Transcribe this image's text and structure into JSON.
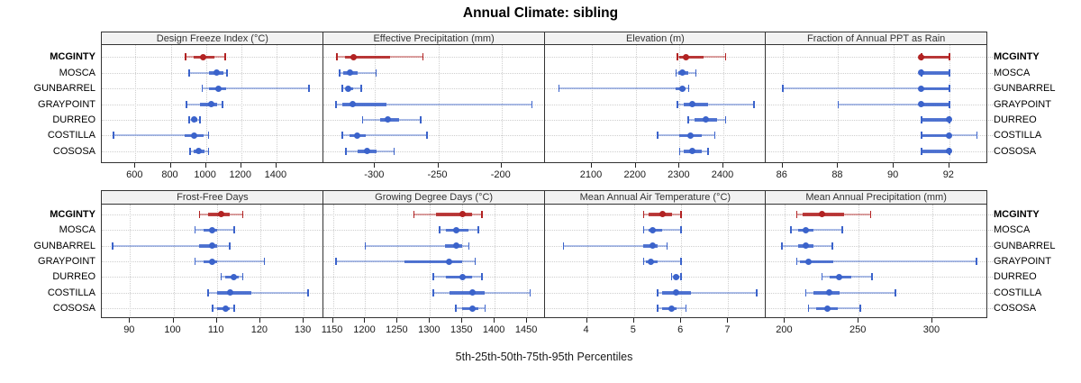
{
  "title": "Annual Climate: sibling",
  "axis_note": "5th-25th-50th-75th-95th Percentiles",
  "categories": [
    "MCGINTY",
    "MOSCA",
    "GUNBARREL",
    "GRAYPOINT",
    "DURREO",
    "COSTILLA",
    "COSOSA"
  ],
  "highlight_category": "MCGINTY",
  "colors": {
    "highlight": "#b22222",
    "series": "#3b63cb",
    "grid": "#cfcfcf",
    "panel_border": "#333333",
    "header_bg": "#f2f2f2",
    "text": "#000000"
  },
  "chart_data": {
    "type": "dot-whisker-percentiles",
    "percentiles": [
      "5th",
      "25th",
      "50th",
      "75th",
      "95th"
    ],
    "layout": {
      "rows": 2,
      "cols": 4,
      "legend": "none",
      "grid": "dotted"
    },
    "panels": [
      {
        "title": "Design Freeze Index (°C)",
        "xlim": [
          409,
          1665
        ],
        "ticks": [
          600,
          800,
          1000,
          1200,
          1400
        ],
        "series": [
          {
            "name": "MCGINTY",
            "values": [
              885,
              930,
              985,
              1050,
              1110
            ]
          },
          {
            "name": "MOSCA",
            "values": [
              905,
              1015,
              1060,
              1100,
              1120
            ]
          },
          {
            "name": "GUNBARREL",
            "values": [
              980,
              1015,
              1070,
              1115,
              1585
            ]
          },
          {
            "name": "GRAYPOINT",
            "values": [
              890,
              965,
              1030,
              1065,
              1095
            ]
          },
          {
            "name": "DURREO",
            "values": [
              905,
              920,
              935,
              950,
              965
            ]
          },
          {
            "name": "COSTILLA",
            "values": [
              475,
              880,
              935,
              985,
              1015
            ]
          },
          {
            "name": "COSOSA",
            "values": [
              910,
              930,
              960,
              990,
              1015
            ]
          }
        ]
      },
      {
        "title": "Effective Precipitation (mm)",
        "xlim": [
          -341,
          -166
        ],
        "ticks": [
          -300,
          -250,
          -200
        ],
        "series": [
          {
            "name": "MCGINTY",
            "values": [
              -330,
              -324,
              -317,
              -288,
              -262
            ]
          },
          {
            "name": "MOSCA",
            "values": [
              -328,
              -325,
              -320,
              -314,
              -299
            ]
          },
          {
            "name": "GUNBARREL",
            "values": [
              -326,
              -323,
              -321,
              -317,
              -311
            ]
          },
          {
            "name": "GRAYPOINT",
            "values": [
              -331,
              -326,
              -318,
              -291,
              -176
            ]
          },
          {
            "name": "DURREO",
            "values": [
              -310,
              -296,
              -290,
              -281,
              -264
            ]
          },
          {
            "name": "COSTILLA",
            "values": [
              -326,
              -320,
              -314,
              -307,
              -259
            ]
          },
          {
            "name": "COSOSA",
            "values": [
              -323,
              -314,
              -306,
              -299,
              -285
            ]
          }
        ]
      },
      {
        "title": "Elevation (m)",
        "xlim": [
          1992,
          2497
        ],
        "ticks": [
          2100,
          2200,
          2300,
          2400
        ],
        "series": [
          {
            "name": "MCGINTY",
            "values": [
              2295,
              2300,
              2315,
              2355,
              2405
            ]
          },
          {
            "name": "MOSCA",
            "values": [
              2292,
              2297,
              2307,
              2320,
              2337
            ]
          },
          {
            "name": "GUNBARREL",
            "values": [
              2025,
              2290,
              2306,
              2314,
              2321
            ]
          },
          {
            "name": "GRAYPOINT",
            "values": [
              2295,
              2310,
              2330,
              2365,
              2470
            ]
          },
          {
            "name": "DURREO",
            "values": [
              2320,
              2335,
              2360,
              2385,
              2405
            ]
          },
          {
            "name": "COSTILLA",
            "values": [
              2250,
              2300,
              2325,
              2350,
              2380
            ]
          },
          {
            "name": "COSOSA",
            "values": [
              2300,
              2310,
              2330,
              2350,
              2365
            ]
          }
        ]
      },
      {
        "title": "Fraction of Annual PPT as Rain",
        "xlim": [
          85.4,
          93.4
        ],
        "ticks": [
          86,
          88,
          90,
          92
        ],
        "series": [
          {
            "name": "MCGINTY",
            "values": [
              91,
              91,
              91,
              92,
              92
            ]
          },
          {
            "name": "MOSCA",
            "values": [
              91,
              91,
              91,
              92,
              92
            ]
          },
          {
            "name": "GUNBARREL",
            "values": [
              86,
              91,
              91,
              92,
              92
            ]
          },
          {
            "name": "GRAYPOINT",
            "values": [
              88,
              91,
              91,
              92,
              92
            ]
          },
          {
            "name": "DURREO",
            "values": [
              91,
              91,
              92,
              92,
              92
            ]
          },
          {
            "name": "COSTILLA",
            "values": [
              91,
              91,
              92,
              92,
              93
            ]
          },
          {
            "name": "COSOSA",
            "values": [
              91,
              91,
              92,
              92,
              92
            ]
          }
        ]
      },
      {
        "title": "Frost-Free Days",
        "xlim": [
          83.5,
          134.5
        ],
        "ticks": [
          90,
          100,
          110,
          120,
          130
        ],
        "series": [
          {
            "name": "MCGINTY",
            "values": [
              106,
              108,
              111,
              113,
              116
            ]
          },
          {
            "name": "MOSCA",
            "values": [
              105,
              107,
              109,
              110,
              114
            ]
          },
          {
            "name": "GUNBARREL",
            "values": [
              86,
              106,
              109,
              110,
              113
            ]
          },
          {
            "name": "GRAYPOINT",
            "values": [
              105,
              107,
              109,
              110,
              121
            ]
          },
          {
            "name": "DURREO",
            "values": [
              111,
              112,
              114,
              115,
              116
            ]
          },
          {
            "name": "COSTILLA",
            "values": [
              108,
              110,
              113,
              118,
              131
            ]
          },
          {
            "name": "COSOSA",
            "values": [
              109,
              110,
              112,
              113,
              114
            ]
          }
        ]
      },
      {
        "title": "Growing Degree Days (°C)",
        "xlim": [
          1135,
          1477
        ],
        "ticks": [
          1150,
          1200,
          1250,
          1300,
          1350,
          1400,
          1450
        ],
        "series": [
          {
            "name": "MCGINTY",
            "values": [
              1275,
              1310,
              1350,
              1365,
              1380
            ]
          },
          {
            "name": "MOSCA",
            "values": [
              1315,
              1325,
              1340,
              1360,
              1375
            ]
          },
          {
            "name": "GUNBARREL",
            "values": [
              1200,
              1323,
              1340,
              1350,
              1360
            ]
          },
          {
            "name": "GRAYPOINT",
            "values": [
              1155,
              1260,
              1330,
              1350,
              1370
            ]
          },
          {
            "name": "DURREO",
            "values": [
              1305,
              1325,
              1350,
              1365,
              1380
            ]
          },
          {
            "name": "COSTILLA",
            "values": [
              1305,
              1330,
              1365,
              1385,
              1455
            ]
          },
          {
            "name": "COSOSA",
            "values": [
              1340,
              1350,
              1365,
              1375,
              1385
            ]
          }
        ]
      },
      {
        "title": "Mean Annual Air Temperature (°C)",
        "xlim": [
          3.1,
          7.8
        ],
        "ticks": [
          4,
          5,
          6,
          7
        ],
        "series": [
          {
            "name": "MCGINTY",
            "values": [
              5.2,
              5.3,
              5.6,
              5.8,
              6.0
            ]
          },
          {
            "name": "MOSCA",
            "values": [
              5.2,
              5.3,
              5.4,
              5.6,
              6.0
            ]
          },
          {
            "name": "GUNBARREL",
            "values": [
              3.5,
              5.2,
              5.4,
              5.5,
              5.7
            ]
          },
          {
            "name": "GRAYPOINT",
            "values": [
              5.2,
              5.25,
              5.35,
              5.5,
              6.0
            ]
          },
          {
            "name": "DURREO",
            "values": [
              5.8,
              5.85,
              5.9,
              5.95,
              6.0
            ]
          },
          {
            "name": "COSTILLA",
            "values": [
              5.5,
              5.6,
              5.9,
              6.2,
              7.6
            ]
          },
          {
            "name": "COSOSA",
            "values": [
              5.5,
              5.6,
              5.8,
              5.9,
              6.1
            ]
          }
        ]
      },
      {
        "title": "Mean Annual Precipitation (mm)",
        "xlim": [
          187,
          338
        ],
        "ticks": [
          200,
          250,
          300
        ],
        "series": [
          {
            "name": "MCGINTY",
            "values": [
              208,
              212,
              225,
              240,
              258
            ]
          },
          {
            "name": "MOSCA",
            "values": [
              204,
              209,
              214,
              219,
              239
            ]
          },
          {
            "name": "GUNBARREL",
            "values": [
              198,
              209,
              214,
              219,
              232
            ]
          },
          {
            "name": "GRAYPOINT",
            "values": [
              208,
              210,
              216,
              233,
              330
            ]
          },
          {
            "name": "DURREO",
            "values": [
              225,
              230,
              237,
              245,
              259
            ]
          },
          {
            "name": "COSTILLA",
            "values": [
              214,
              219,
              230,
              237,
              275
            ]
          },
          {
            "name": "COSOSA",
            "values": [
              216,
              221,
              229,
              236,
              251
            ]
          }
        ]
      }
    ]
  }
}
